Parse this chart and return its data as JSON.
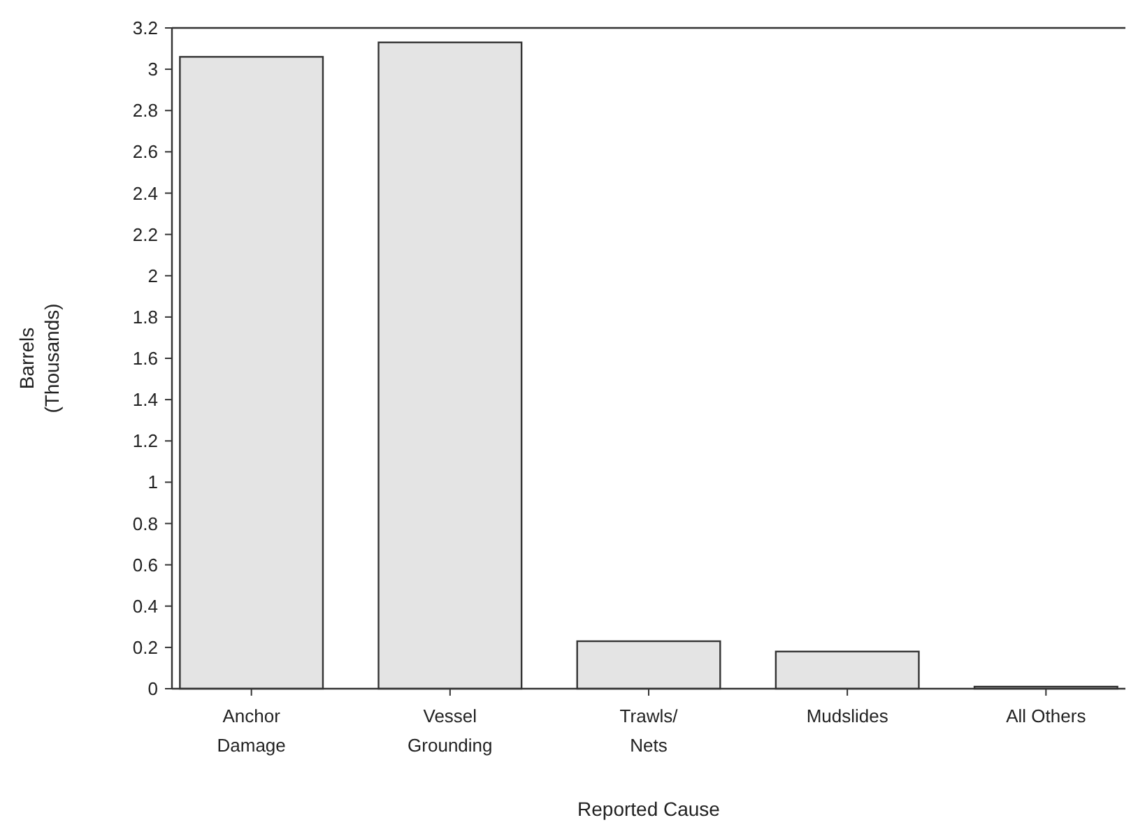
{
  "chart_data": {
    "type": "bar",
    "xlabel": "Reported Cause",
    "ylabel": "Barrels\n(Thousands)",
    "categories": [
      "Anchor\nDamage",
      "Vessel\nGrounding",
      "Trawls/\nNets",
      "Mudslides",
      "All Others"
    ],
    "values": [
      3.06,
      3.13,
      0.23,
      0.18,
      0.01
    ],
    "color": "#e4e4e4",
    "ylim": [
      0,
      3.2
    ],
    "yticks": [
      0,
      0.2,
      0.4,
      0.6,
      0.8,
      1,
      1.2,
      1.4,
      1.6,
      1.8,
      2,
      2.2,
      2.4,
      2.6,
      2.8,
      3,
      3.2
    ],
    "grid": false
  }
}
